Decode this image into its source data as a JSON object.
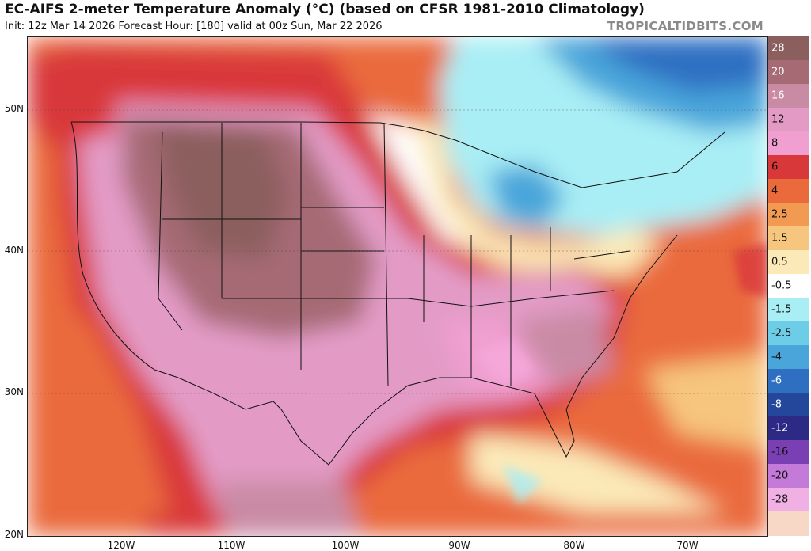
{
  "header": {
    "title": "EC-AIFS 2-meter Temperature Anomaly (°C) (based on CFSR 1981-2010 Climatology)",
    "subtitle": "Init: 12z Mar 14 2026   Forecast Hour: [180]   valid at 00z Sun, Mar 22 2026",
    "brand": "TROPICALTIDBITS.COM"
  },
  "axes": {
    "lat_labels": [
      "50N",
      "40N",
      "30N",
      "20N"
    ],
    "lon_labels": [
      "120W",
      "110W",
      "100W",
      "90W",
      "80W",
      "70W"
    ]
  },
  "colorbar": {
    "labels": [
      "28",
      "20",
      "16",
      "12",
      "8",
      "6",
      "4",
      "2.5",
      "1.5",
      "0.5",
      "-0.5",
      "-1.5",
      "-2.5",
      "-4",
      "-6",
      "-8",
      "-12",
      "-16",
      "-20",
      "-28"
    ],
    "colors": [
      "#8c5f5f",
      "#a66a74",
      "#c98ba4",
      "#e39bc6",
      "#f19fd1",
      "#d9383a",
      "#ea6a3c",
      "#f29a52",
      "#f6c57e",
      "#fbe9b8",
      "#ffffff",
      "#a9eef5",
      "#6dcde6",
      "#4aa5da",
      "#2f6fc2",
      "#24479b",
      "#2d2a86",
      "#7a3fb3",
      "#c47ad8",
      "#f0b0e4",
      "#f7d7c5"
    ]
  }
}
